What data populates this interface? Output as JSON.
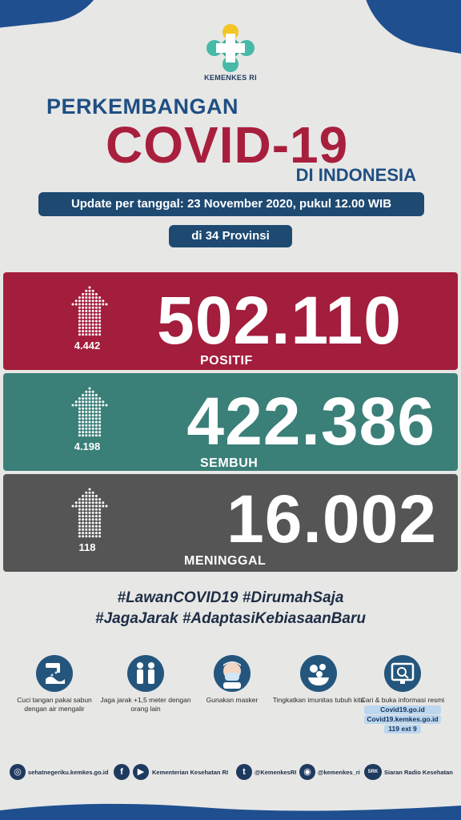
{
  "brand": {
    "org": "KEMENKES RI",
    "colors": {
      "blue": "#1f4f82",
      "red": "#a31d3c",
      "teal": "#3a7f78",
      "gray": "#555555"
    }
  },
  "header": {
    "title_top": "PERKEMBANGAN",
    "title_main": "COVID-19",
    "title_sub": "DI INDONESIA",
    "update": "Update per tanggal: 23 November 2020, pukul 12.00 WIB",
    "provinces": "di 34 Provinsi"
  },
  "stats": {
    "positif": {
      "value": "502.110",
      "delta": "4.442",
      "label": "POSITIF",
      "icon": "arrow-up-icon"
    },
    "sembuh": {
      "value": "422.386",
      "delta": "4.198",
      "label": "SEMBUH",
      "icon": "arrow-up-icon"
    },
    "meninggal": {
      "value": "16.002",
      "delta": "118",
      "label": "MENINGGAL",
      "icon": "arrow-up-icon"
    }
  },
  "hashtags": {
    "line1": "#LawanCOVID19  #DirumahSaja",
    "line2": "#JagaJarak #AdaptasiKebiasaanBaru"
  },
  "tips": [
    {
      "icon": "handwash-icon",
      "text": "Cuci tangan pakai sabun dengan air mengalir"
    },
    {
      "icon": "distance-icon",
      "text": "Jaga jarak +1,5 meter dengan orang lain"
    },
    {
      "icon": "mask-icon",
      "text": "Gunakan masker"
    },
    {
      "icon": "immunity-icon",
      "text": "Tingkatkan imunitas tubuh kita"
    },
    {
      "icon": "info-search-icon",
      "text": "Cari & buka informasi resmi",
      "links": [
        "Covid19.go.id",
        "Covid19.kemkes.go.id",
        "119 ext 9"
      ]
    }
  ],
  "footer": {
    "website": "sehatnegeriku.kemkes.go.id",
    "facebook_youtube": "Kementerian Kesehatan RI",
    "twitter": "@KemenkesRI",
    "instagram": "@kemenkes_ri",
    "radio": "Siaran Radio Kesehatan",
    "radio_badge": "SRK"
  }
}
